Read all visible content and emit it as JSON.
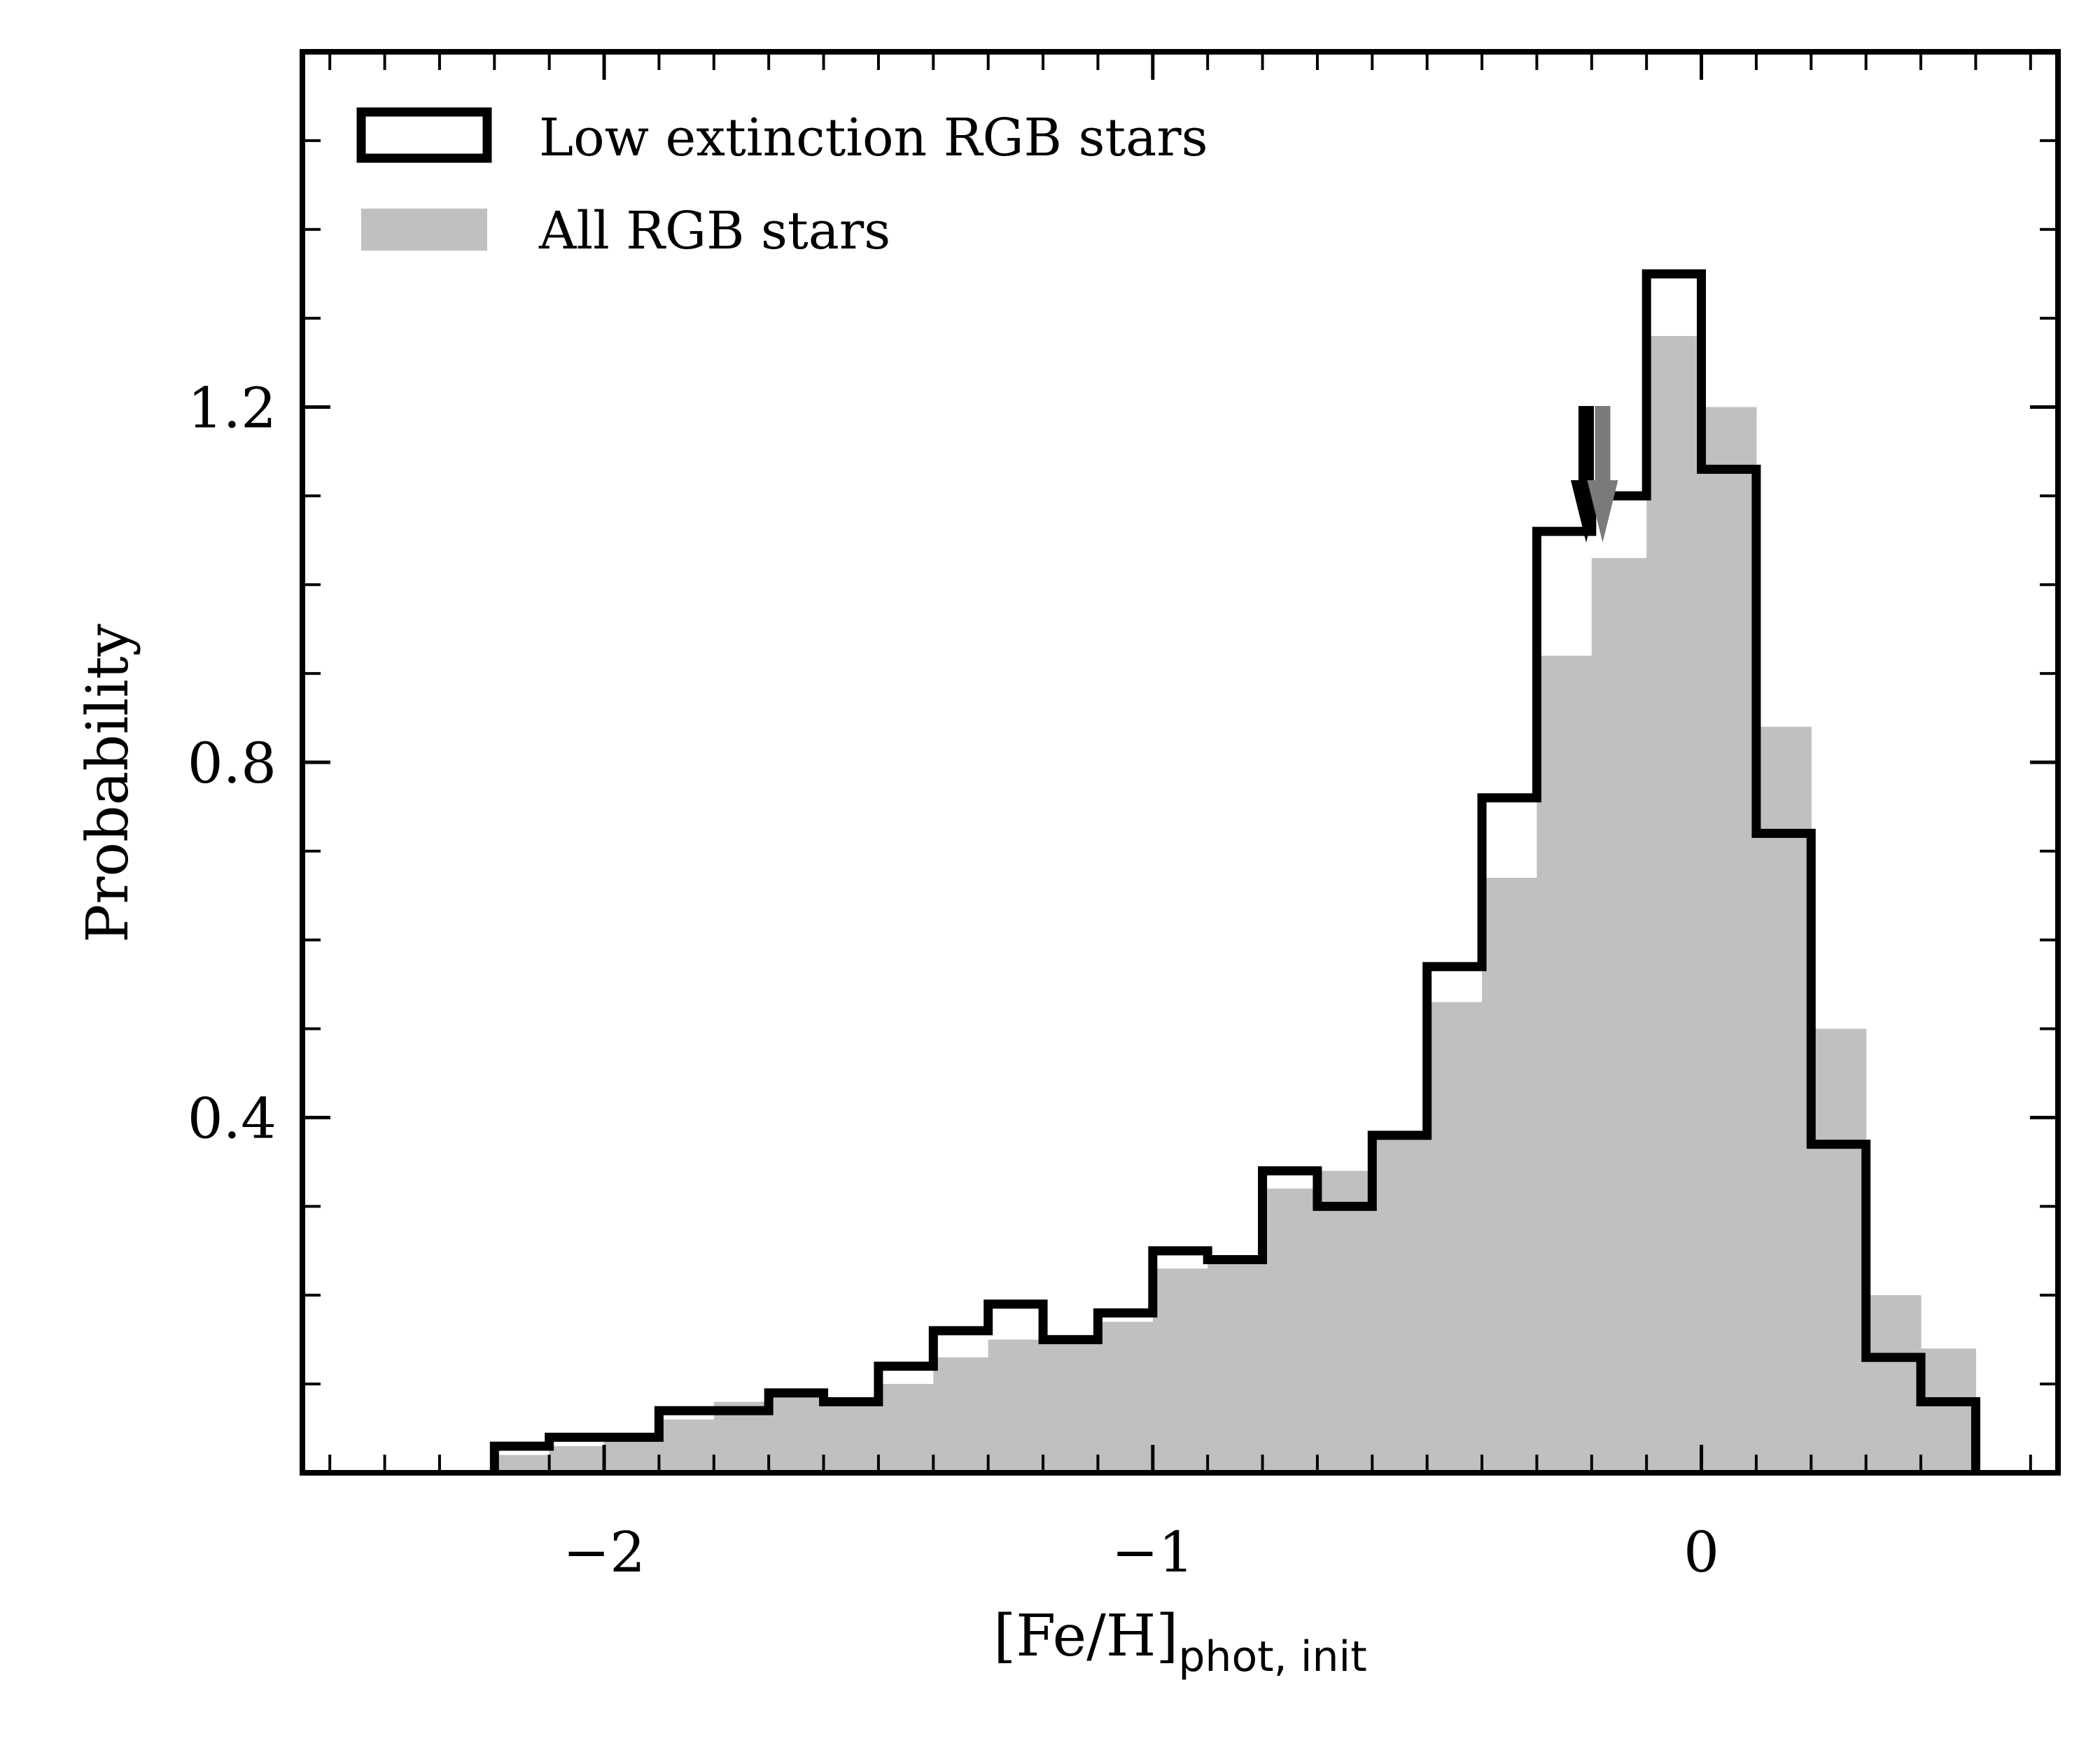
{
  "chart_data": {
    "type": "histogram",
    "xlabel": "[Fe/H]",
    "xlabel_subscript": "phot, init",
    "ylabel": "Probability",
    "xlim": [
      -2.55,
      0.65
    ],
    "ylim": [
      0,
      1.6
    ],
    "xticks": [
      {
        "value": -2,
        "label": "−2"
      },
      {
        "value": -1,
        "label": "−1"
      },
      {
        "value": 0,
        "label": "0"
      }
    ],
    "yticks": [
      {
        "value": 0.4,
        "label": "0.4"
      },
      {
        "value": 0.8,
        "label": "0.8"
      },
      {
        "value": 1.2,
        "label": "1.2"
      }
    ],
    "grid": false,
    "legend_position": "top-left",
    "bin_edges": [
      -2.2,
      -2.1,
      -2.0,
      -1.9,
      -1.8,
      -1.7,
      -1.6,
      -1.5,
      -1.4,
      -1.3,
      -1.2,
      -1.1,
      -1.0,
      -0.9,
      -0.8,
      -0.7,
      -0.6,
      -0.5,
      -0.4,
      -0.3,
      -0.2,
      -0.1,
      0.0,
      0.1,
      0.2,
      0.3,
      0.4,
      0.5
    ],
    "series": [
      {
        "name": "All RGB stars",
        "style": "filled",
        "color": "#c0c0c0",
        "values": [
          0.02,
          0.03,
          0.04,
          0.06,
          0.08,
          0.09,
          0.08,
          0.1,
          0.13,
          0.15,
          0.15,
          0.17,
          0.23,
          0.24,
          0.32,
          0.34,
          0.38,
          0.53,
          0.67,
          0.92,
          1.03,
          1.28,
          1.2,
          0.84,
          0.5,
          0.2,
          0.14
        ]
      },
      {
        "name": "Low extinction RGB stars",
        "style": "step",
        "color": "#000000",
        "values": [
          0.03,
          0.04,
          0.04,
          0.07,
          0.07,
          0.09,
          0.08,
          0.12,
          0.16,
          0.19,
          0.15,
          0.18,
          0.25,
          0.24,
          0.34,
          0.3,
          0.38,
          0.57,
          0.76,
          1.06,
          1.1,
          1.35,
          1.13,
          0.72,
          0.37,
          0.13,
          0.08
        ]
      }
    ],
    "markers": [
      {
        "series": "Low extinction RGB stars",
        "type": "down-arrow",
        "x": -0.21,
        "color": "#000000"
      },
      {
        "series": "All RGB stars",
        "type": "down-arrow",
        "x": -0.18,
        "color": "#7a7a7a"
      }
    ]
  }
}
